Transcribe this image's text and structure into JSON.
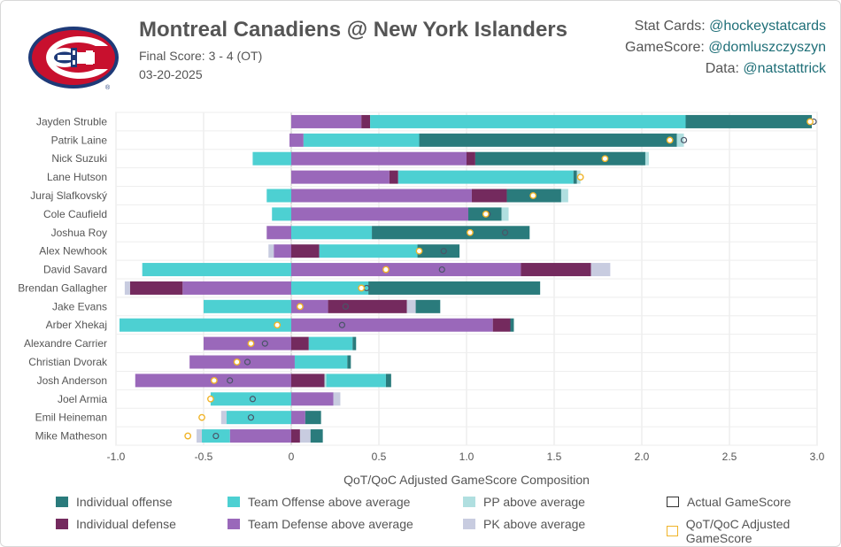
{
  "header": {
    "title": "Montreal Canadiens @ New York Islanders",
    "final_score": "Final Score: 3 - 4 (OT)",
    "date": "03-20-2025"
  },
  "credits": [
    {
      "label": "Stat Cards: ",
      "handle": "@hockeystatcards"
    },
    {
      "label": "GameScore: ",
      "handle": "@domluszczyszyn"
    },
    {
      "label": "Data: ",
      "handle": "@natstattrick"
    }
  ],
  "colors": {
    "ind_off": "#2a7b7c",
    "ind_def": "#742a5e",
    "team_off": "#4dd0d2",
    "team_def": "#9a68ba",
    "pp": "#b0dfe0",
    "pk": "#c8cce0",
    "gs_marker": "#4a5568",
    "adj_marker": "#f0b429"
  },
  "legend": [
    {
      "key": "ind_off",
      "label": "Individual offense",
      "kind": "fill"
    },
    {
      "key": "team_off",
      "label": "Team Offense above average",
      "kind": "fill"
    },
    {
      "key": "pp",
      "label": "PP above average",
      "kind": "fill"
    },
    {
      "key": "gs",
      "label": "Actual GameScore",
      "kind": "outline-dark"
    },
    {
      "key": "ind_def",
      "label": "Individual defense",
      "kind": "fill"
    },
    {
      "key": "team_def",
      "label": "Team Defense above average",
      "kind": "fill"
    },
    {
      "key": "pk",
      "label": "PK above average",
      "kind": "fill"
    },
    {
      "key": "adj",
      "label": "QoT/QoC Adjusted GameScore",
      "kind": "outline-gold"
    }
  ],
  "chart_data": {
    "type": "bar",
    "orientation": "horizontal-stacked",
    "xlabel": "QoT/QoC Adjusted GameScore Composition",
    "xlim": [
      -1.0,
      3.0
    ],
    "xticks": [
      "-1.0",
      "-0.5",
      "0",
      "0.5",
      "1.0",
      "1.5",
      "2.0",
      "2.5",
      "3.0"
    ],
    "grid": true,
    "players": [
      {
        "name": "Jayden Struble",
        "pos": [
          {
            "k": "team_def",
            "v": 0.4
          },
          {
            "k": "ind_def",
            "v": 0.05
          },
          {
            "k": "team_off",
            "v": 1.8
          },
          {
            "k": "ind_off",
            "v": 0.72
          }
        ],
        "neg": [],
        "gs": 2.98,
        "adj": 2.96
      },
      {
        "name": "Patrik Laine",
        "pos": [
          {
            "k": "team_def",
            "v": 0.07
          },
          {
            "k": "team_off",
            "v": 0.66
          },
          {
            "k": "ind_off",
            "v": 1.47
          },
          {
            "k": "pp",
            "v": 0.04
          }
        ],
        "neg": [
          {
            "k": "team_def",
            "v": 0.01
          }
        ],
        "gs": 2.24,
        "adj": 2.16
      },
      {
        "name": "Nick Suzuki",
        "pos": [
          {
            "k": "team_def",
            "v": 1.0
          },
          {
            "k": "ind_def",
            "v": 0.05
          },
          {
            "k": "ind_off",
            "v": 0.97
          },
          {
            "k": "pp",
            "v": 0.02
          }
        ],
        "neg": [
          {
            "k": "team_off",
            "v": 0.22
          }
        ],
        "gs": 1.79,
        "adj": 1.79
      },
      {
        "name": "Lane Hutson",
        "pos": [
          {
            "k": "team_def",
            "v": 0.56
          },
          {
            "k": "ind_def",
            "v": 0.05
          },
          {
            "k": "team_off",
            "v": 1.0
          },
          {
            "k": "ind_off",
            "v": 0.02
          },
          {
            "k": "pp",
            "v": 0.02
          }
        ],
        "neg": [],
        "gs": 1.65,
        "adj": 1.65
      },
      {
        "name": "Juraj Slafkovský",
        "pos": [
          {
            "k": "team_def",
            "v": 1.03
          },
          {
            "k": "ind_def",
            "v": 0.2
          },
          {
            "k": "ind_off",
            "v": 0.31
          },
          {
            "k": "pp",
            "v": 0.04
          }
        ],
        "neg": [
          {
            "k": "team_off",
            "v": 0.14
          }
        ],
        "gs": 1.38,
        "adj": 1.38
      },
      {
        "name": "Cole Caufield",
        "pos": [
          {
            "k": "team_def",
            "v": 1.01
          },
          {
            "k": "ind_off",
            "v": 0.19
          },
          {
            "k": "pp",
            "v": 0.04
          }
        ],
        "neg": [
          {
            "k": "team_off",
            "v": 0.11
          }
        ],
        "gs": 1.12,
        "adj": 1.11
      },
      {
        "name": "Joshua Roy",
        "pos": [
          {
            "k": "team_off",
            "v": 0.46
          },
          {
            "k": "ind_off",
            "v": 0.9
          }
        ],
        "neg": [
          {
            "k": "team_def",
            "v": 0.14
          }
        ],
        "gs": 1.22,
        "adj": 1.02
      },
      {
        "name": "Alex Newhook",
        "pos": [
          {
            "k": "ind_def",
            "v": 0.16
          },
          {
            "k": "team_off",
            "v": 0.56
          },
          {
            "k": "ind_off",
            "v": 0.24
          }
        ],
        "neg": [
          {
            "k": "team_def",
            "v": 0.1
          },
          {
            "k": "pk",
            "v": 0.03
          }
        ],
        "gs": 0.87,
        "adj": 0.73
      },
      {
        "name": "David Savard",
        "pos": [
          {
            "k": "team_def",
            "v": 1.31
          },
          {
            "k": "ind_def",
            "v": 0.4
          },
          {
            "k": "pk",
            "v": 0.11
          }
        ],
        "neg": [
          {
            "k": "team_off",
            "v": 0.85
          }
        ],
        "gs": 0.86,
        "adj": 0.54
      },
      {
        "name": "Brendan Gallagher",
        "pos": [
          {
            "k": "team_off",
            "v": 0.44
          },
          {
            "k": "ind_off",
            "v": 0.98
          }
        ],
        "neg": [
          {
            "k": "team_def",
            "v": 0.62
          },
          {
            "k": "ind_def",
            "v": 0.3
          },
          {
            "k": "pk",
            "v": 0.03
          }
        ],
        "gs": 0.43,
        "adj": 0.4
      },
      {
        "name": "Jake Evans",
        "pos": [
          {
            "k": "team_def",
            "v": 0.21
          },
          {
            "k": "ind_def",
            "v": 0.45
          },
          {
            "k": "pk",
            "v": 0.05
          },
          {
            "k": "ind_off",
            "v": 0.14
          }
        ],
        "neg": [
          {
            "k": "team_off",
            "v": 0.5
          }
        ],
        "gs": 0.31,
        "adj": 0.05
      },
      {
        "name": "Arber Xhekaj",
        "pos": [
          {
            "k": "team_def",
            "v": 1.15
          },
          {
            "k": "ind_def",
            "v": 0.1
          },
          {
            "k": "ind_off",
            "v": 0.02
          }
        ],
        "neg": [
          {
            "k": "team_off",
            "v": 0.98
          }
        ],
        "gs": 0.29,
        "adj": -0.08
      },
      {
        "name": "Alexandre Carrier",
        "pos": [
          {
            "k": "ind_def",
            "v": 0.1
          },
          {
            "k": "team_off",
            "v": 0.25
          },
          {
            "k": "ind_off",
            "v": 0.02
          }
        ],
        "neg": [
          {
            "k": "team_def",
            "v": 0.5
          }
        ],
        "gs": -0.15,
        "adj": -0.23
      },
      {
        "name": "Christian Dvorak",
        "pos": [
          {
            "k": "team_def",
            "v": 0.02
          },
          {
            "k": "team_off",
            "v": 0.3
          },
          {
            "k": "ind_off",
            "v": 0.02
          }
        ],
        "neg": [
          {
            "k": "team_def",
            "v": 0.58
          }
        ],
        "gs": -0.25,
        "adj": -0.31
      },
      {
        "name": "Josh Anderson",
        "pos": [
          {
            "k": "ind_def",
            "v": 0.19
          },
          {
            "k": "pp",
            "v": 0.01
          },
          {
            "k": "team_off",
            "v": 0.34
          },
          {
            "k": "ind_off",
            "v": 0.03
          }
        ],
        "neg": [
          {
            "k": "team_def",
            "v": 0.89
          }
        ],
        "gs": -0.35,
        "adj": -0.44
      },
      {
        "name": "Joel Armia",
        "pos": [
          {
            "k": "team_def",
            "v": 0.24
          },
          {
            "k": "pk",
            "v": 0.04
          }
        ],
        "neg": [
          {
            "k": "team_off",
            "v": 0.46
          }
        ],
        "gs": -0.22,
        "adj": -0.46
      },
      {
        "name": "Emil Heineman",
        "pos": [
          {
            "k": "team_def",
            "v": 0.08
          },
          {
            "k": "ind_off",
            "v": 0.09
          }
        ],
        "neg": [
          {
            "k": "team_off",
            "v": 0.37
          },
          {
            "k": "pk",
            "v": 0.03
          }
        ],
        "gs": -0.23,
        "adj": -0.51
      },
      {
        "name": "Mike Matheson",
        "pos": [
          {
            "k": "ind_def",
            "v": 0.05
          },
          {
            "k": "pk",
            "v": 0.06
          },
          {
            "k": "ind_off",
            "v": 0.07
          }
        ],
        "neg": [
          {
            "k": "team_def",
            "v": 0.35
          },
          {
            "k": "team_off",
            "v": 0.16
          },
          {
            "k": "pk",
            "v": 0.03
          }
        ],
        "gs": -0.43,
        "adj": -0.59
      }
    ]
  }
}
